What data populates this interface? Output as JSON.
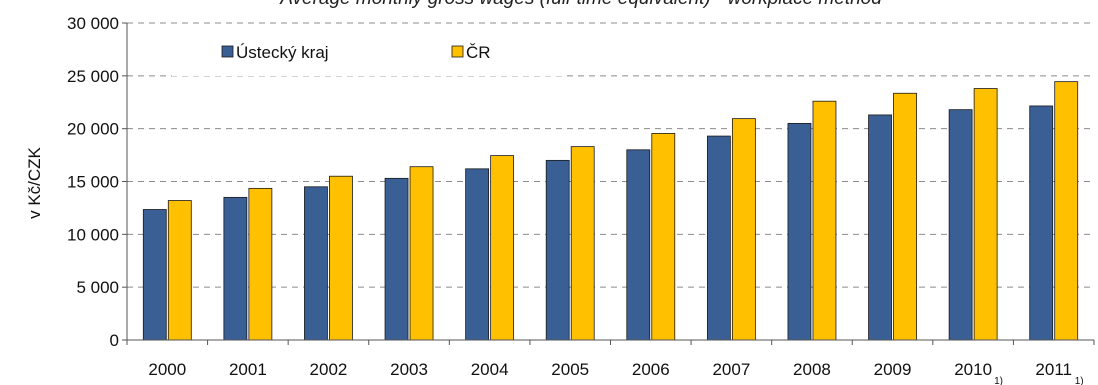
{
  "chart_data": {
    "type": "bar",
    "title": "Average monthly gross wages (full-time equivalent) - workplace method",
    "ylabel": "v Kč/CZK",
    "xlabel": "",
    "ylim": [
      0,
      30000
    ],
    "yticks": [
      0,
      5000,
      10000,
      15000,
      20000,
      25000,
      30000
    ],
    "ytick_labels": [
      "0",
      "5 000",
      "10 000",
      "15 000",
      "20 000",
      "25 000",
      "30 000"
    ],
    "categories": [
      "2000",
      "2001",
      "2002",
      "2003",
      "2004",
      "2005",
      "2006",
      "2007",
      "2008",
      "2009",
      "2010",
      "2011"
    ],
    "category_notes": [
      "",
      "",
      "",
      "",
      "",
      "",
      "",
      "",
      "",
      "",
      "1)",
      "1)"
    ],
    "grid": true,
    "legend_position": "top-left",
    "series": [
      {
        "name": "Ústecký kraj",
        "color": "#3a5f94",
        "values": [
          12350,
          13500,
          14500,
          15300,
          16200,
          17000,
          18000,
          19300,
          20500,
          21300,
          21800,
          22150
        ]
      },
      {
        "name": "ČR",
        "color": "#ffc000",
        "values": [
          13200,
          14350,
          15500,
          16400,
          17450,
          18300,
          19550,
          20950,
          22600,
          23350,
          23800,
          24450
        ]
      }
    ]
  }
}
